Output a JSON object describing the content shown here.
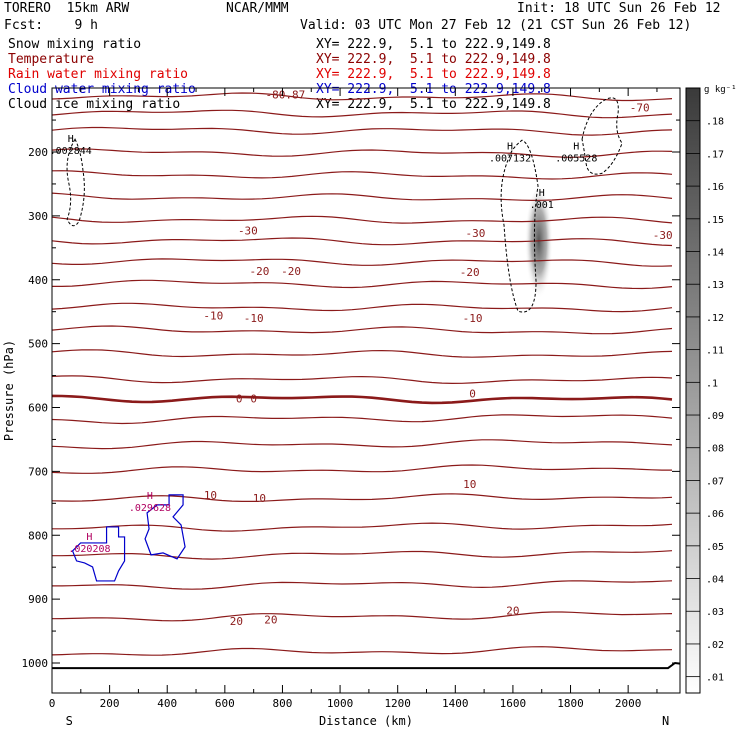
{
  "header": {
    "model": "TORERO  15km ARW",
    "center": "NCAR/MMM",
    "init": "Init: 18 UTC Sun 26 Feb 12",
    "fcst": "Fcst:    9 h",
    "valid": "Valid: 03 UTC Mon 27 Feb 12 (21 CST Sun 26 Feb 12)"
  },
  "fields": [
    {
      "name": "Snow mixing ratio",
      "xy": "XY= 222.9,  5.1 to 222.9,149.8",
      "color": "#000000"
    },
    {
      "name": "Temperature",
      "xy": "XY= 222.9,  5.1 to 222.9,149.8",
      "color": "#8b0000"
    },
    {
      "name": "Rain water mixing ratio",
      "xy": "XY= 222.9,  5.1 to 222.9,149.8",
      "color": "#e00000"
    },
    {
      "name": "Cloud water mixing ratio",
      "xy": "XY= 222.9,  5.1 to 222.9,149.8",
      "color": "#0000cc"
    },
    {
      "name": "Cloud ice mixing ratio",
      "xy": "XY= 222.9,  5.1 to 222.9,149.8",
      "color": "#000000"
    }
  ],
  "chart_data": {
    "type": "cross-section contour",
    "xlabel": "Distance (km)",
    "ylabel": "Pressure (hPa)",
    "xlim": [
      0,
      2180
    ],
    "ylim": [
      1050,
      100
    ],
    "x_ticks": [
      0,
      200,
      400,
      600,
      800,
      1000,
      1200,
      1400,
      1600,
      1800,
      2000
    ],
    "y_ticks": [
      200,
      300,
      400,
      500,
      600,
      700,
      800,
      900,
      1000
    ],
    "end_labels": {
      "left": "S",
      "right": "N"
    },
    "temperature_isotherm_labels": [
      {
        "value": "-70",
        "x": 2040,
        "p": 130
      },
      {
        "value": "-80.87",
        "x": 810,
        "p": 110
      },
      {
        "value": "-30",
        "x": 680,
        "p": 323
      },
      {
        "value": "-30",
        "x": 1470,
        "p": 327
      },
      {
        "value": "-30",
        "x": 2120,
        "p": 330
      },
      {
        "value": "-20",
        "x": 720,
        "p": 386
      },
      {
        "value": "-20",
        "x": 830,
        "p": 386
      },
      {
        "value": "-20",
        "x": 1450,
        "p": 388
      },
      {
        "value": "-10",
        "x": 560,
        "p": 456
      },
      {
        "value": "-10",
        "x": 700,
        "p": 460
      },
      {
        "value": "-10",
        "x": 1460,
        "p": 460
      },
      {
        "value": "0",
        "x": 650,
        "p": 586
      },
      {
        "value": "0",
        "x": 700,
        "p": 586
      },
      {
        "value": "0",
        "x": 1460,
        "p": 578
      },
      {
        "value": "10",
        "x": 550,
        "p": 737
      },
      {
        "value": "10",
        "x": 720,
        "p": 742
      },
      {
        "value": "10",
        "x": 1450,
        "p": 720
      },
      {
        "value": "20",
        "x": 640,
        "p": 934
      },
      {
        "value": "20",
        "x": 760,
        "p": 932
      },
      {
        "value": "20",
        "x": 1600,
        "p": 918
      }
    ],
    "isotherm_pressures": [
      112,
      138,
      165,
      200,
      235,
      270,
      305,
      338,
      370,
      405,
      442,
      478,
      515,
      555,
      585,
      620,
      660,
      700,
      745,
      790,
      833,
      880,
      930,
      985
    ],
    "maxima": [
      {
        "label": "H",
        "value": ".002844",
        "x": 65,
        "p": 203
      },
      {
        "label": "H",
        "value": ".007132",
        "x": 1590,
        "p": 215
      },
      {
        "label": "H",
        "value": ".005528",
        "x": 1820,
        "p": 215
      },
      {
        "label": "H",
        "value": ".001",
        "x": 1700,
        "p": 288
      },
      {
        "label": "H",
        "value": ".020208",
        "x": 130,
        "p": 826
      },
      {
        "label": "H",
        "value": ".029628",
        "x": 340,
        "p": 762
      }
    ],
    "snow_shading_max": {
      "x": 1690,
      "p": 330,
      "value": 0.17
    },
    "colorbar": {
      "unit": "g kg⁻¹",
      "ticks": [
        ".01",
        ".02",
        ".03",
        ".04",
        ".05",
        ".06",
        ".07",
        ".08",
        ".09",
        ".1",
        ".11",
        ".12",
        ".13",
        ".14",
        ".15",
        ".16",
        ".17",
        ".18"
      ]
    }
  }
}
